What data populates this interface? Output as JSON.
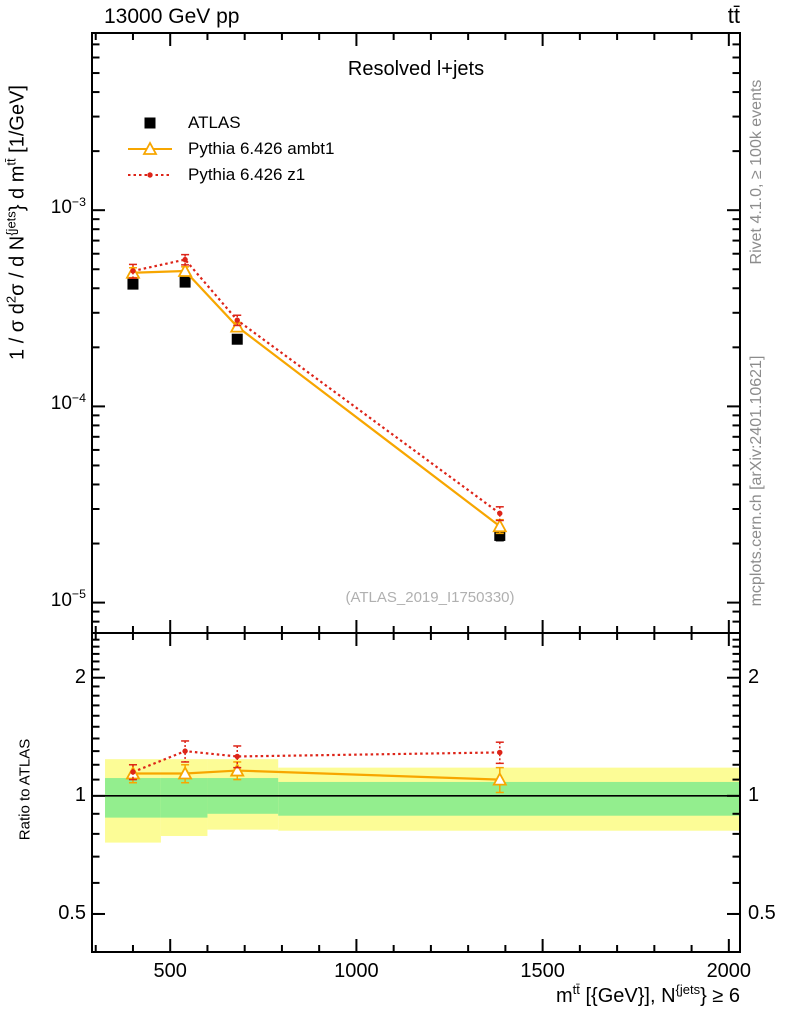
{
  "header": {
    "left": "13000 GeV pp",
    "right": "tt̄"
  },
  "side_texts": {
    "rivet": "Rivet 4.1.0, ≥ 100k events",
    "mcplots": "mcplots.cern.ch [arXiv:2401.10621]"
  },
  "chart_data": {
    "type": "line",
    "title": "Resolved l+jets",
    "watermark": "(ATLAS_2019_I1750330)",
    "xlabel_parts": [
      {
        "t": "m"
      },
      {
        "t": "tt̄",
        "sup": true
      },
      {
        "t": " [{GeV}], N"
      },
      {
        "t": "{jets",
        "sup": true
      },
      {
        "t": "} ≥ 6"
      }
    ],
    "ylabel_parts": [
      {
        "t": "1 / "
      },
      {
        "t": "σ"
      },
      {
        "t": " d"
      },
      {
        "t": "2",
        "sup": true
      },
      {
        "t": "σ"
      },
      {
        "t": " / d N"
      },
      {
        "t": "{jets",
        "sup": true
      },
      {
        "t": "} d m"
      },
      {
        "t": "tt̄",
        "sup": true
      },
      {
        "t": " [1/GeV]"
      }
    ],
    "x": [
      400,
      540,
      680,
      1385
    ],
    "xlim": [
      290,
      2030
    ],
    "xticks": [
      500,
      1000,
      1500,
      2000
    ],
    "xminor_step": 100,
    "main": {
      "ylim": [
        7e-06,
        0.008
      ],
      "ytick_exponents": [
        -3,
        -4,
        -5
      ],
      "series": [
        {
          "name": "ATLAS",
          "color": "#000000",
          "marker": "square",
          "line": "none",
          "values": [
            0.00042,
            0.00043,
            0.00022,
            2.2e-05
          ],
          "err_frac": [
            0.05,
            0.05,
            0.05,
            0.06
          ]
        },
        {
          "name": "Pythia 6.426 ambt1",
          "color": "#f7a600",
          "marker": "triangle-open",
          "line": "solid",
          "values": [
            0.00048,
            0.00049,
            0.000255,
            2.45e-05
          ],
          "err_frac": [
            0.06,
            0.05,
            0.05,
            0.08
          ]
        },
        {
          "name": "Pythia 6.426 z1",
          "color": "#dd2418",
          "marker": "dot",
          "line": "dotted",
          "values": [
            0.00049,
            0.00056,
            0.000275,
            2.85e-05
          ],
          "err_frac": [
            0.08,
            0.06,
            0.06,
            0.08
          ]
        }
      ]
    },
    "ratio": {
      "ylabel": "Ratio to ATLAS",
      "ylim": [
        0.4,
        2.6
      ],
      "yticks": [
        {
          "v": 2,
          "label": "2"
        },
        {
          "v": 1,
          "label": "1"
        },
        {
          "v": 0.5,
          "label": "0.5"
        }
      ],
      "yminor": [
        0.5,
        0.6,
        0.7,
        0.8,
        0.9,
        1.1,
        1.2,
        1.3,
        1.4,
        1.5,
        1.6,
        1.7,
        1.8,
        1.9,
        2.1,
        2.2,
        2.3,
        2.4,
        2.5
      ],
      "series": [
        {
          "name": "Pythia 6.426 ambt1",
          "values": [
            1.14,
            1.14,
            1.16,
            1.1
          ],
          "err": [
            0.06,
            0.06,
            0.06,
            0.08
          ]
        },
        {
          "name": "Pythia 6.426 z1",
          "values": [
            1.15,
            1.3,
            1.26,
            1.29
          ],
          "err": [
            0.05,
            0.08,
            0.08,
            0.08
          ]
        }
      ],
      "bands": {
        "yellow_color": "#fcfc96",
        "green_color": "#93ee8e",
        "segments": [
          {
            "x1": 325,
            "x2": 475,
            "yellow": [
              0.76,
              1.24
            ],
            "green": [
              0.88,
              1.11
            ]
          },
          {
            "x1": 475,
            "x2": 600,
            "yellow": [
              0.79,
              1.24
            ],
            "green": [
              0.88,
              1.11
            ]
          },
          {
            "x1": 600,
            "x2": 790,
            "yellow": [
              0.82,
              1.24
            ],
            "green": [
              0.9,
              1.11
            ]
          },
          {
            "x1": 790,
            "x2": 2030,
            "yellow": [
              0.815,
              1.18
            ],
            "green": [
              0.89,
              1.085
            ]
          }
        ]
      }
    }
  }
}
